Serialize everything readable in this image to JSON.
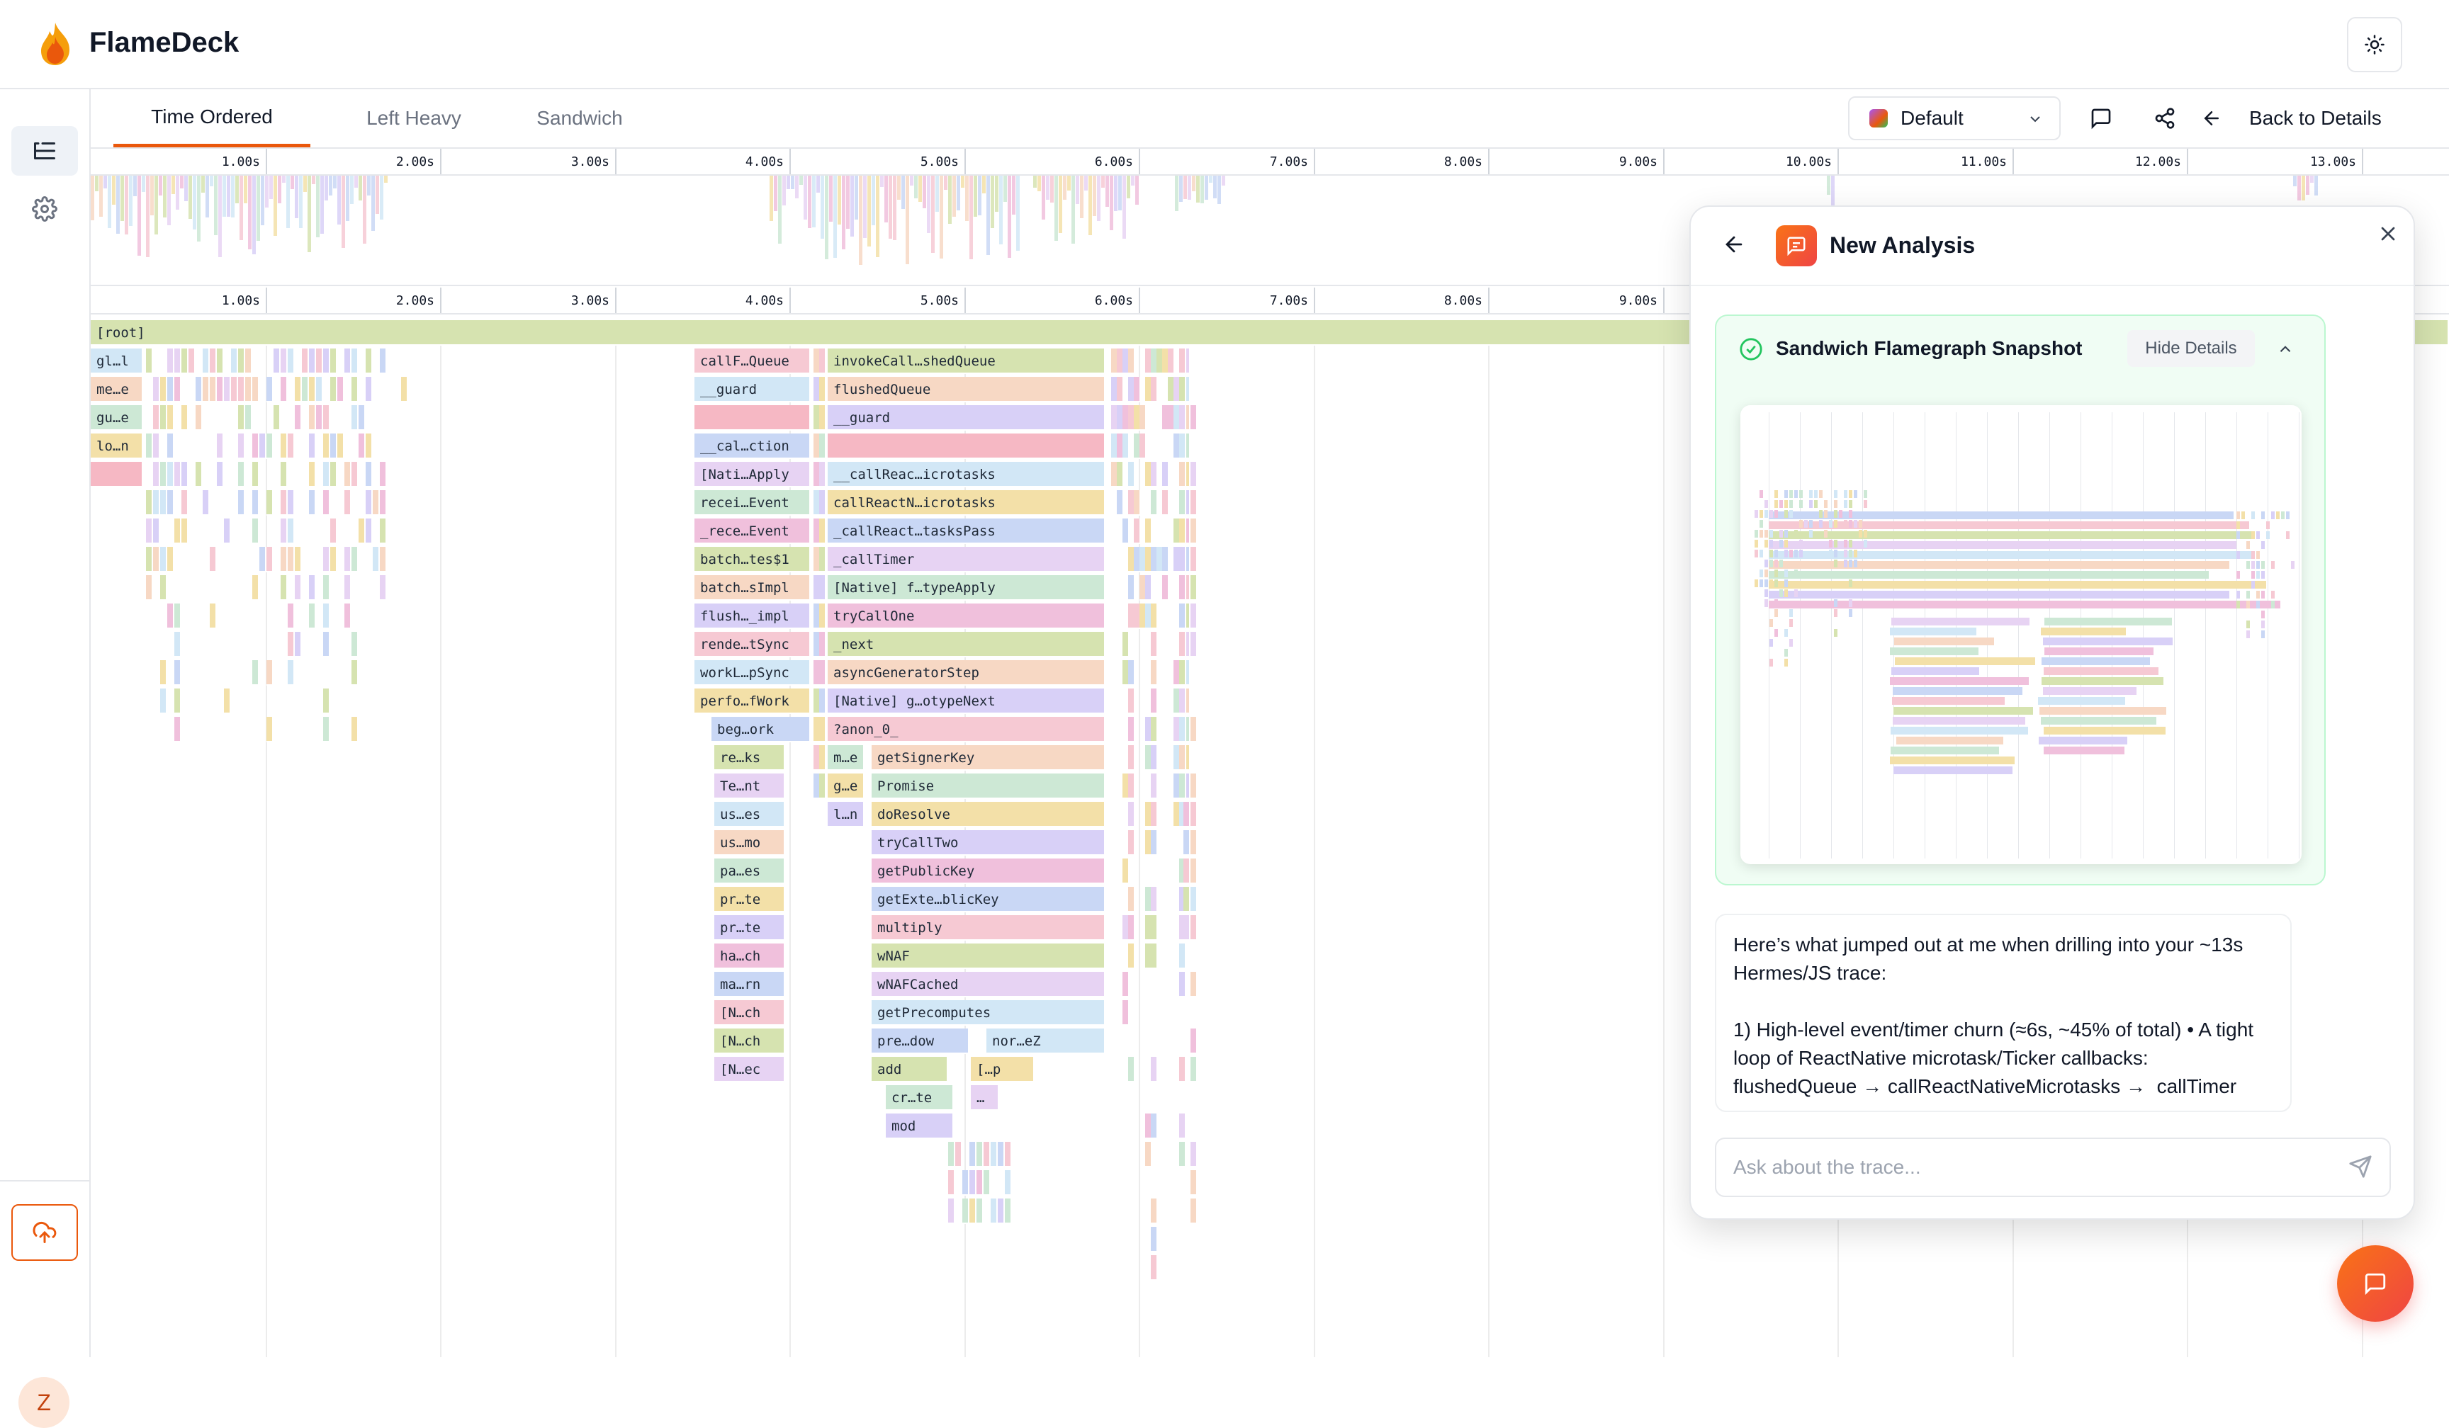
{
  "app": {
    "title": "FlameDeck"
  },
  "tabs": [
    {
      "label": "Time Ordered",
      "active": true
    },
    {
      "label": "Left Heavy",
      "active": false
    },
    {
      "label": "Sandwich",
      "active": false
    }
  ],
  "toolbar": {
    "color_scheme": "Default",
    "back_label": "Back to Details"
  },
  "sidebar": {
    "avatar_initial": "Z"
  },
  "timeline": {
    "ticks": [
      "1.00s",
      "2.00s",
      "3.00s",
      "4.00s",
      "5.00s",
      "6.00s",
      "7.00s",
      "8.00s",
      "9.00s",
      "10.00s",
      "11.00s",
      "12.00s",
      "13.00s"
    ]
  },
  "flamegraph": {
    "root_label": "[root]",
    "left_stack": [
      "gl…l",
      "me…e",
      "gu…e",
      "lo…n"
    ],
    "main_stack": [
      [
        "callF…Queue",
        "invokeCall…shedQueue"
      ],
      [
        "__guard",
        "flushedQueue"
      ],
      [
        "",
        "__guard"
      ],
      [
        "__cal…ction",
        ""
      ],
      [
        "[Nati…Apply",
        "__callReac…icrotasks"
      ],
      [
        "recei…Event",
        "callReactN…icrotasks"
      ],
      [
        "_rece…Event",
        "_callReact…tasksPass"
      ],
      [
        "batch…tes$1",
        "_callTimer"
      ],
      [
        "batch…sImpl",
        "[Native] f…typeApply"
      ],
      [
        "flush…_impl",
        "tryCallOne"
      ],
      [
        "rende…tSync",
        "_next"
      ],
      [
        "workL…pSync",
        "asyncGeneratorStep"
      ],
      [
        "perfo…fWork",
        "[Native] g…otypeNext"
      ],
      [
        "beg…ork",
        "?anon_0_"
      ]
    ],
    "deep_left": [
      "re…ks",
      "Te…nt",
      "us…es",
      "us…mo",
      "pa…es",
      "pr…te",
      "pr…te",
      "ha…ch",
      "ma…rn",
      "[N…ch",
      "[N…ch",
      "[N…ec"
    ],
    "deep_mid_a": [
      "m…e",
      "g…e",
      "l…n"
    ],
    "deep_mid_b": [
      "getSignerKey",
      "Promise",
      "doResolve",
      "tryCallTwo",
      "getPublicKey",
      "getExte…blicKey",
      "multiply",
      "wNAF",
      "wNAFCached",
      "getPrecomputes"
    ],
    "deep_tail": {
      "pre": "pre…dow",
      "nor": "nor…eZ",
      "add": "add",
      "p": "[…p",
      "crte": "cr…te",
      "dots": "…",
      "mod": "mod"
    }
  },
  "analysis": {
    "title": "New Analysis",
    "snapshot_title": "Sandwich Flamegraph Snapshot",
    "hide_label": "Hide Details",
    "message": "Here’s what jumped out at me when drilling into your ~13s Hermes/JS trace:\n\n1) High-level event/timer churn (≈6s, ~45% of total) • A tight loop of ReactNative microtask/Ticker callbacks: flushedQueue → callReactNativeMicrotasks →  callTimer",
    "input_placeholder": "Ask about the trace..."
  },
  "colors": {
    "accent": "#ea580c",
    "root": "#d6e3b0",
    "success": "#22c55e"
  }
}
